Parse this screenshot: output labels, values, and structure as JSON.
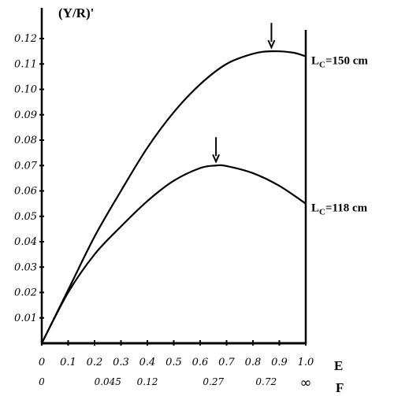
{
  "chart_data": {
    "type": "line",
    "ylabel": "(Y/R)'",
    "ylim": [
      0,
      0.125
    ],
    "xlim": [
      0,
      1.0
    ],
    "y_ticks": [
      "0.01",
      "0.02",
      "0.03",
      "0.04",
      "0.05",
      "0.06",
      "0.07",
      "0.08",
      "0.09",
      "0.10",
      "0.11",
      "0.12"
    ],
    "y_tick_values": [
      0.01,
      0.02,
      0.03,
      0.04,
      0.05,
      0.06,
      0.07,
      0.08,
      0.09,
      0.1,
      0.11,
      0.12
    ],
    "x_axis_E": {
      "label": "E",
      "ticks": [
        "0",
        "0.1",
        "0.2",
        "0.3",
        "0.4",
        "0.5",
        "0.6",
        "0.7",
        "0.8",
        "0.9",
        "1.0"
      ],
      "tick_values": [
        0,
        0.1,
        0.2,
        0.3,
        0.4,
        0.5,
        0.6,
        0.7,
        0.8,
        0.9,
        1.0
      ]
    },
    "x_axis_F": {
      "label": "F",
      "ticks": [
        "0",
        "0.045",
        "0.12",
        "0.27",
        "0.72",
        "∞"
      ],
      "tick_values": [
        0,
        0.25,
        0.4,
        0.65,
        0.85,
        1.0
      ]
    },
    "series": [
      {
        "name": "Lc=150 cm",
        "label_main": "L",
        "label_sub": "C",
        "label_rest": "=150 cm",
        "x": [
          0,
          0.1,
          0.2,
          0.3,
          0.4,
          0.5,
          0.6,
          0.7,
          0.8,
          0.87,
          0.95,
          1.0
        ],
        "y": [
          0,
          0.021,
          0.042,
          0.06,
          0.077,
          0.091,
          0.102,
          0.11,
          0.114,
          0.115,
          0.1145,
          0.113
        ],
        "max_marker_x": 0.87
      },
      {
        "name": "Lc=118 cm",
        "label_main": "L",
        "label_sub": "C",
        "label_rest": "=118 cm",
        "x": [
          0,
          0.1,
          0.2,
          0.3,
          0.4,
          0.5,
          0.6,
          0.66,
          0.7,
          0.8,
          0.9,
          1.0
        ],
        "y": [
          0,
          0.02,
          0.035,
          0.046,
          0.056,
          0.064,
          0.069,
          0.07,
          0.0698,
          0.067,
          0.062,
          0.055
        ],
        "max_marker_x": 0.66
      }
    ],
    "grid": false,
    "legend": "none"
  }
}
